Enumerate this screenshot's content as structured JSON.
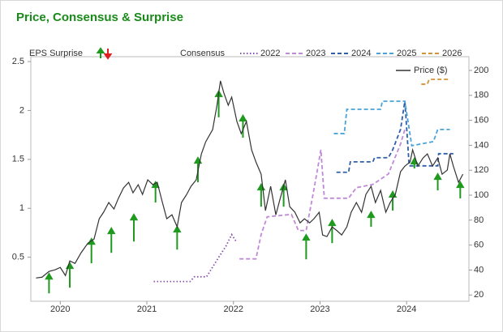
{
  "chart_data": {
    "type": "line",
    "title": "Price, Consensus & Surprise",
    "consensus_label": "Consensus",
    "xlim": [
      2019.66,
      2024.72
    ],
    "xticks": [
      2020,
      2021,
      2022,
      2023,
      2024
    ],
    "ylim": [
      0.05,
      2.55
    ],
    "yticks": [
      0.5,
      1,
      1.5,
      2,
      2.5
    ],
    "y2lim": [
      15,
      211
    ],
    "y2ticks": [
      20,
      40,
      60,
      80,
      100,
      120,
      140,
      160,
      180,
      200
    ],
    "grid": false,
    "surprises": {
      "name": "EPS Surprise",
      "color": "#1f9a1f",
      "down_color": "#e02020",
      "axis": "y2",
      "x": [
        2019.87,
        2020.11,
        2020.36,
        2020.59,
        2020.85,
        2021.1,
        2021.35,
        2021.59,
        2021.83,
        2022.11,
        2022.32,
        2022.58,
        2022.84,
        2023.14,
        2023.59,
        2023.84,
        2024.09,
        2024.36,
        2024.62
      ],
      "from": [
        21.3,
        25.9,
        45.4,
        53.8,
        62.9,
        94.1,
        56.4,
        110.3,
        162.4,
        146.1,
        90.8,
        90.8,
        48.6,
        61.6,
        74.6,
        87.6,
        121.4,
        103.8,
        97.4
      ],
      "to": [
        36.9,
        45.4,
        64.8,
        73.3,
        84.3,
        110.3,
        74.6,
        129.8,
        183.2,
        163.6,
        108.4,
        108.4,
        68.1,
        79.8,
        86.3,
        102.6,
        129.2,
        116.8,
        110.3
      ]
    },
    "series": [
      {
        "name": "2022",
        "color": "#8a4fb0",
        "dash": "dotted",
        "axis": "y",
        "x": [
          2021.08,
          2021.5,
          2021.55,
          2021.69,
          2021.76,
          2021.83,
          2021.91,
          2021.98,
          2022.04
        ],
        "values": [
          0.252,
          0.252,
          0.3,
          0.3,
          0.4,
          0.5,
          0.607,
          0.731,
          0.649
        ]
      },
      {
        "name": "2023",
        "color": "#c08ad8",
        "dash": "dashed",
        "axis": "y",
        "x": [
          2022.07,
          2022.26,
          2022.32,
          2022.39,
          2022.67,
          2022.75,
          2022.84,
          2022.92,
          2022.97,
          2023.01,
          2023.05,
          2023.33,
          2023.42,
          2023.61,
          2023.79,
          2023.93,
          2023.98
        ],
        "values": [
          0.483,
          0.483,
          0.731,
          0.913,
          0.938,
          0.773,
          0.773,
          1.145,
          1.393,
          1.599,
          1.103,
          1.103,
          1.211,
          1.244,
          1.351,
          1.657,
          1.806
        ]
      },
      {
        "name": "2024",
        "color": "#2f5fa8",
        "dash": "dashed",
        "axis": "y",
        "x": [
          2023.19,
          2023.33,
          2023.35,
          2023.61,
          2023.63,
          2023.79,
          2023.84,
          2023.93,
          2023.98,
          2024.03,
          2024.12,
          2024.36,
          2024.37,
          2024.54
        ],
        "values": [
          1.368,
          1.368,
          1.475,
          1.475,
          1.517,
          1.517,
          1.599,
          1.806,
          2.095,
          1.434,
          1.434,
          1.434,
          1.558,
          1.558
        ]
      },
      {
        "name": "2025",
        "color": "#4aa3d8",
        "dash": "dashed",
        "axis": "y",
        "x": [
          2023.16,
          2023.28,
          2023.31,
          2023.7,
          2023.72,
          2023.98,
          2024.06,
          2024.31,
          2024.36,
          2024.5
        ],
        "values": [
          1.764,
          1.764,
          2.012,
          2.012,
          2.095,
          2.095,
          1.64,
          1.682,
          1.806,
          1.806
        ]
      },
      {
        "name": "2026",
        "color": "#d4923a",
        "dash": "dashed",
        "axis": "y",
        "x": [
          2024.17,
          2024.24,
          2024.26,
          2024.5
        ],
        "values": [
          2.269,
          2.269,
          2.318,
          2.318
        ]
      },
      {
        "name": "Price ($)",
        "color": "#333333",
        "dash": "solid",
        "axis": "y2",
        "x": [
          2019.72,
          2019.79,
          2019.87,
          2019.94,
          2020.0,
          2020.06,
          2020.11,
          2020.17,
          2020.24,
          2020.32,
          2020.39,
          2020.45,
          2020.5,
          2020.56,
          2020.62,
          2020.67,
          2020.73,
          2020.79,
          2020.84,
          2020.9,
          2020.95,
          2021.01,
          2021.07,
          2021.12,
          2021.18,
          2021.23,
          2021.29,
          2021.35,
          2021.4,
          2021.46,
          2021.51,
          2021.57,
          2021.63,
          2021.68,
          2021.76,
          2021.81,
          2021.85,
          2021.89,
          2021.94,
          2021.98,
          2022.04,
          2022.09,
          2022.15,
          2022.21,
          2022.26,
          2022.32,
          2022.37,
          2022.43,
          2022.49,
          2022.54,
          2022.6,
          2022.65,
          2022.71,
          2022.77,
          2022.82,
          2022.88,
          2022.93,
          2022.99,
          2023.03,
          2023.08,
          2023.14,
          2023.2,
          2023.25,
          2023.31,
          2023.36,
          2023.42,
          2023.48,
          2023.53,
          2023.59,
          2023.64,
          2023.7,
          2023.76,
          2023.81,
          2023.87,
          2023.93,
          2023.98,
          2024.04,
          2024.07,
          2024.13,
          2024.19,
          2024.24,
          2024.3,
          2024.36,
          2024.41,
          2024.47,
          2024.5,
          2024.54,
          2024.6,
          2024.65
        ],
        "values": [
          33.6,
          34.3,
          38.9,
          40.2,
          42.1,
          35.6,
          47.3,
          45.3,
          53.8,
          61.6,
          64.8,
          81.1,
          86.3,
          94.1,
          88.9,
          97.3,
          105.8,
          110.3,
          101.9,
          108.4,
          100.6,
          112.3,
          108.4,
          110.3,
          94.1,
          81.1,
          84.3,
          74.6,
          94.1,
          100.6,
          107.1,
          112.3,
          133.1,
          142.8,
          152.6,
          172.1,
          191.6,
          181.8,
          172.1,
          178.6,
          159.1,
          149.3,
          159.1,
          136.3,
          126.6,
          116.8,
          87.6,
          107.1,
          84.3,
          97.3,
          112.3,
          90.8,
          86.3,
          77.8,
          81.1,
          77.8,
          81.1,
          86.3,
          68.1,
          66.8,
          74.6,
          71.3,
          68.1,
          74.6,
          86.3,
          94.1,
          86.3,
          100.6,
          107.1,
          94.1,
          103.8,
          86.3,
          94.1,
          100.6,
          118.8,
          123.3,
          126.6,
          136.3,
          123.3,
          129.8,
          133.1,
          123.3,
          129.8,
          116.8,
          120.1,
          133.1,
          123.3,
          110.3,
          116.8
        ]
      }
    ]
  }
}
